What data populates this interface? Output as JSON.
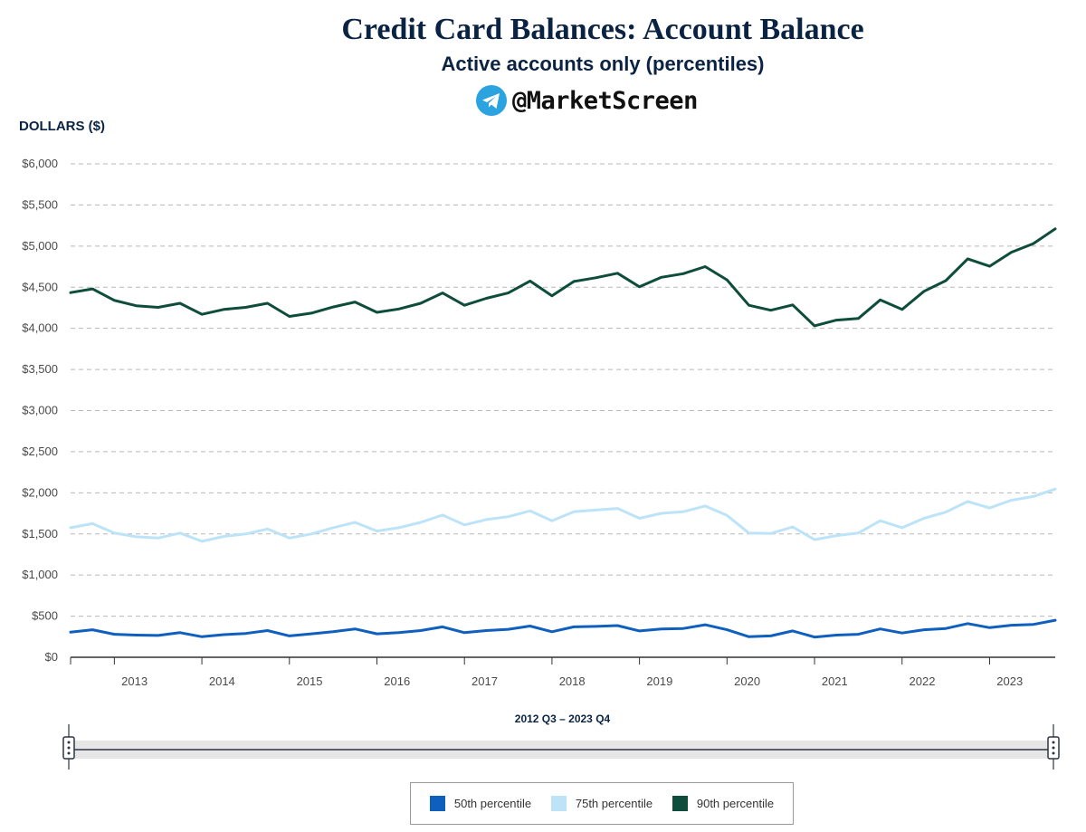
{
  "header": {
    "title": "Credit Card Balances: Account Balance",
    "subtitle": "Active accounts only (percentiles)",
    "watermark": "@MarketScreen"
  },
  "range": {
    "label": "2012 Q3 – 2023 Q4"
  },
  "chart_data": {
    "type": "line",
    "title": "Credit Card Balances: Account Balance",
    "subtitle": "Active accounts only (percentiles)",
    "ylabel": "DOLLARS ($)",
    "xlabel": "",
    "ylim": [
      0,
      6000
    ],
    "yticks": [
      0,
      500,
      1000,
      1500,
      2000,
      2500,
      3000,
      3500,
      4000,
      4500,
      5000,
      5500,
      6000
    ],
    "ytick_labels": [
      "$0",
      "$500",
      "$1,000",
      "$1,500",
      "$2,000",
      "$2,500",
      "$3,000",
      "$3,500",
      "$4,000",
      "$4,500",
      "$5,000",
      "$5,500",
      "$6,000"
    ],
    "x_start": "2012 Q3",
    "x_end": "2023 Q4",
    "xtick_labels": [
      "2013",
      "2014",
      "2015",
      "2016",
      "2017",
      "2018",
      "2019",
      "2020",
      "2021",
      "2022",
      "2023"
    ],
    "grid": true,
    "legend_position": "bottom",
    "series": [
      {
        "name": "50th percentile",
        "color": "#0f5fbf",
        "values": [
          305,
          335,
          280,
          270,
          265,
          300,
          250,
          275,
          290,
          325,
          260,
          285,
          310,
          345,
          285,
          300,
          325,
          370,
          300,
          325,
          340,
          380,
          310,
          370,
          375,
          385,
          320,
          345,
          350,
          395,
          335,
          250,
          260,
          320,
          245,
          270,
          280,
          345,
          295,
          335,
          350,
          410,
          360,
          390,
          400,
          450
        ]
      },
      {
        "name": "75th percentile",
        "color": "#bde3f8",
        "values": [
          1575,
          1625,
          1510,
          1465,
          1450,
          1510,
          1410,
          1470,
          1500,
          1560,
          1450,
          1500,
          1575,
          1640,
          1535,
          1575,
          1640,
          1730,
          1610,
          1675,
          1710,
          1780,
          1660,
          1770,
          1790,
          1810,
          1690,
          1750,
          1770,
          1840,
          1725,
          1510,
          1505,
          1585,
          1430,
          1480,
          1510,
          1660,
          1575,
          1690,
          1765,
          1895,
          1815,
          1910,
          1955,
          2045
        ]
      },
      {
        "name": "90th percentile",
        "color": "#0e4d3c",
        "values": [
          4435,
          4480,
          4340,
          4275,
          4255,
          4305,
          4170,
          4230,
          4255,
          4305,
          4145,
          4185,
          4260,
          4320,
          4195,
          4235,
          4305,
          4430,
          4280,
          4365,
          4430,
          4575,
          4395,
          4570,
          4615,
          4670,
          4505,
          4620,
          4665,
          4750,
          4590,
          4280,
          4220,
          4285,
          4030,
          4100,
          4120,
          4345,
          4230,
          4450,
          4580,
          4845,
          4755,
          4925,
          5030,
          5210
        ]
      }
    ]
  }
}
